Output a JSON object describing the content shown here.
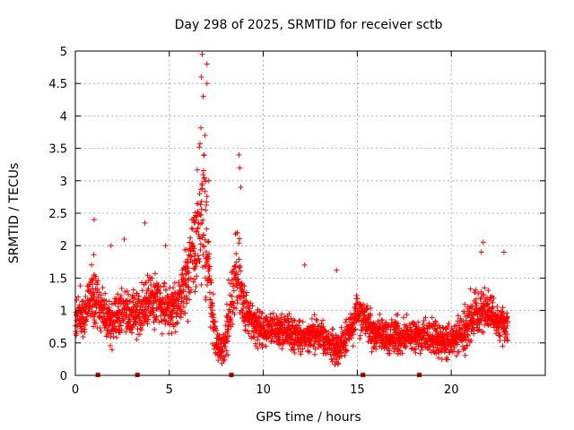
{
  "chart_data": {
    "type": "scatter",
    "title": "Day 298 of 2025, SRMTID for receiver sctb",
    "xlabel": "GPS time / hours",
    "ylabel": "SRMTID / TECUs",
    "xlim": [
      0,
      25
    ],
    "ylim": [
      0,
      5
    ],
    "xticks": [
      0,
      5,
      10,
      15,
      20
    ],
    "xtick_labels": [
      "0",
      "5",
      "10",
      "15",
      "20"
    ],
    "yticks": [
      0,
      0.5,
      1,
      1.5,
      2,
      2.5,
      3,
      3.5,
      4,
      4.5,
      5
    ],
    "ytick_labels": [
      "0",
      "0.5",
      "1",
      "1.5",
      "2",
      "2.5",
      "3",
      "3.5",
      "4",
      "4.5",
      "5"
    ],
    "grid": true,
    "marker": "plus",
    "color": "#ff0000",
    "baseline_markers_x": [
      1.2,
      3.3,
      8.3,
      15.3,
      18.3
    ],
    "series": [
      {
        "name": "SRMTID",
        "profile_x": [
          0,
          0.5,
          1.0,
          1.5,
          2.0,
          2.5,
          3.0,
          3.5,
          4.0,
          4.5,
          5.0,
          5.5,
          6.0,
          6.3,
          6.6,
          6.8,
          7.0,
          7.2,
          7.5,
          7.8,
          8.0,
          8.3,
          8.6,
          8.8,
          9.0,
          9.5,
          10.0,
          11.0,
          12.0,
          13.0,
          13.5,
          14.0,
          14.5,
          15.0,
          15.5,
          16.0,
          17.0,
          18.0,
          19.0,
          20.0,
          20.5,
          21.0,
          21.5,
          22.0,
          22.5,
          23.0
        ],
        "profile_center": [
          0.9,
          1.0,
          1.3,
          0.9,
          0.8,
          1.0,
          0.9,
          1.0,
          1.2,
          1.1,
          1.0,
          1.1,
          1.5,
          1.9,
          2.4,
          2.6,
          2.0,
          1.1,
          0.5,
          0.4,
          0.6,
          1.2,
          1.6,
          1.4,
          1.0,
          0.8,
          0.7,
          0.7,
          0.6,
          0.6,
          0.5,
          0.4,
          0.6,
          1.0,
          0.8,
          0.6,
          0.6,
          0.6,
          0.6,
          0.5,
          0.6,
          0.9,
          1.0,
          1.0,
          0.8,
          0.8
        ],
        "profile_spread": [
          0.35,
          0.4,
          0.5,
          0.35,
          0.35,
          0.4,
          0.4,
          0.4,
          0.45,
          0.4,
          0.4,
          0.45,
          0.6,
          0.8,
          1.2,
          1.3,
          0.9,
          0.5,
          0.3,
          0.3,
          0.4,
          0.6,
          0.8,
          0.5,
          0.4,
          0.35,
          0.3,
          0.3,
          0.3,
          0.3,
          0.3,
          0.3,
          0.3,
          0.35,
          0.3,
          0.3,
          0.3,
          0.3,
          0.3,
          0.25,
          0.35,
          0.45,
          0.4,
          0.35,
          0.3,
          0.3
        ],
        "peaks": [
          {
            "x": 1.0,
            "y": 2.4
          },
          {
            "x": 1.9,
            "y": 2.0
          },
          {
            "x": 2.6,
            "y": 2.1
          },
          {
            "x": 3.7,
            "y": 2.35
          },
          {
            "x": 4.8,
            "y": 2.0
          },
          {
            "x": 6.5,
            "y": 2.65
          },
          {
            "x": 6.75,
            "y": 4.95
          },
          {
            "x": 6.7,
            "y": 4.6
          },
          {
            "x": 6.8,
            "y": 4.3
          },
          {
            "x": 7.0,
            "y": 4.8
          },
          {
            "x": 7.0,
            "y": 4.5
          },
          {
            "x": 6.9,
            "y": 3.7
          },
          {
            "x": 6.85,
            "y": 3.4
          },
          {
            "x": 7.1,
            "y": 3.0
          },
          {
            "x": 8.7,
            "y": 3.4
          },
          {
            "x": 8.75,
            "y": 3.2
          },
          {
            "x": 8.8,
            "y": 2.9
          },
          {
            "x": 8.6,
            "y": 2.2
          },
          {
            "x": 12.2,
            "y": 1.7
          },
          {
            "x": 13.9,
            "y": 1.62
          },
          {
            "x": 21.7,
            "y": 2.05
          },
          {
            "x": 21.6,
            "y": 1.9
          },
          {
            "x": 22.8,
            "y": 1.9
          }
        ]
      }
    ]
  }
}
